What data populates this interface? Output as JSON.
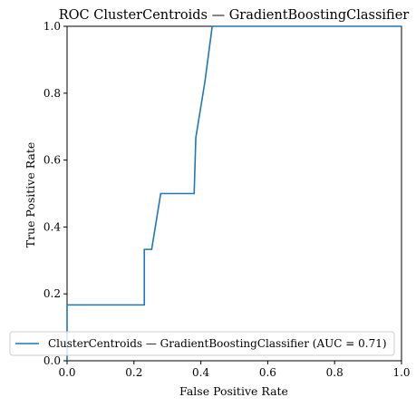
{
  "chart_data": {
    "type": "line",
    "title": "ROC ClusterCentroids — GradientBoostingClassifier",
    "xlabel": "False Positive Rate",
    "ylabel": "True Positive Rate",
    "xlim": [
      0.0,
      1.0
    ],
    "ylim": [
      0.0,
      1.0
    ],
    "xticks": [
      "0.0",
      "0.2",
      "0.4",
      "0.6",
      "0.8",
      "1.0"
    ],
    "yticks": [
      "0.0",
      "0.2",
      "0.4",
      "0.6",
      "0.8",
      "1.0"
    ],
    "grid": false,
    "legend_position": "lower-right",
    "series": [
      {
        "name": "ClusterCentroids — GradientBoostingClassifier (AUC = 0.71)",
        "color": "#1f77b4",
        "x": [
          0.0,
          0.0,
          0.005,
          0.005,
          0.231,
          0.231,
          0.253,
          0.253,
          0.28,
          0.28,
          0.38,
          0.38,
          0.385,
          0.385,
          0.412,
          0.412,
          0.434,
          0.434,
          1.0
        ],
        "y": [
          0.0,
          0.167,
          0.167,
          0.167,
          0.167,
          0.333,
          0.333,
          0.333,
          0.5,
          0.5,
          0.5,
          0.5,
          0.667,
          0.667,
          0.833,
          0.833,
          1.0,
          1.0,
          1.0
        ]
      }
    ]
  }
}
